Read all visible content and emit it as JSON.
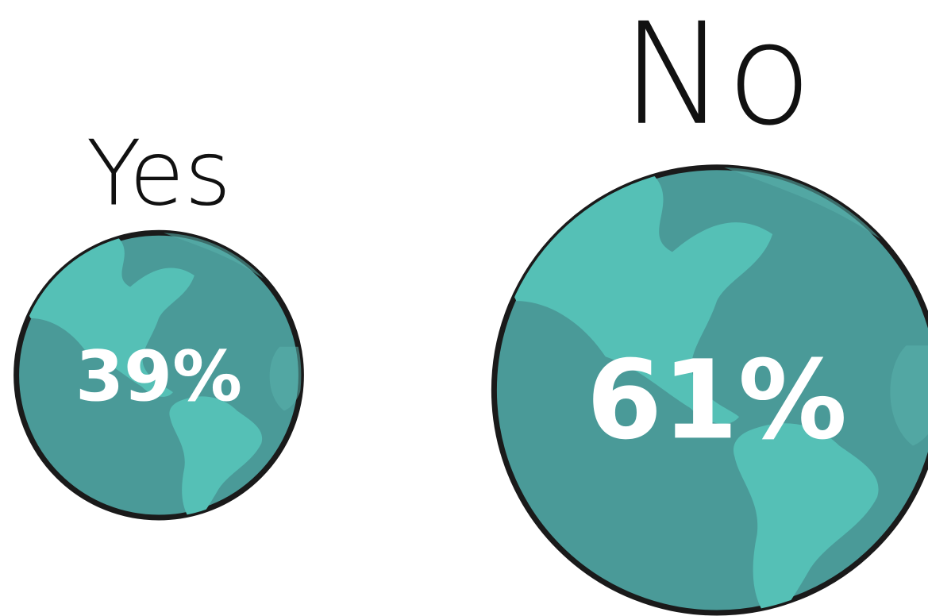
{
  "chart_data": {
    "type": "bubble",
    "categories": [
      "Yes",
      "No"
    ],
    "values": [
      39,
      61
    ],
    "value_labels": [
      "39%",
      "61%"
    ],
    "color": "#4a9a98"
  }
}
